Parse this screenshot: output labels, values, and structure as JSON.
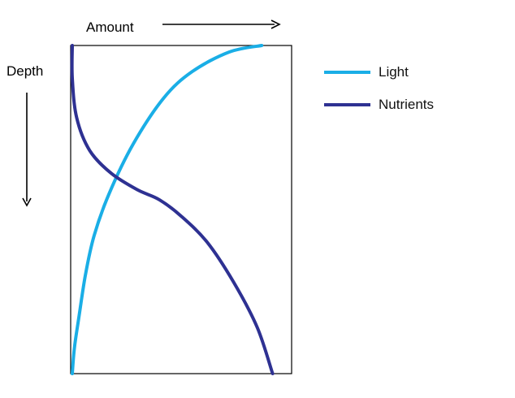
{
  "chart_data": {
    "type": "line",
    "xlabel": "Amount",
    "ylabel": "Depth",
    "x_scale": "relative amount (0 = none, 1 = maximum), increasing to the right",
    "y_scale": "relative depth (0 = surface, 1 = bottom), increasing downward",
    "xlim": [
      0,
      1
    ],
    "ylim": [
      0,
      1
    ],
    "grid": false,
    "legend_position": "right",
    "series": [
      {
        "name": "Light",
        "color": "#1aaee6",
        "points": [
          [
            0.87,
            0.0
          ],
          [
            0.72,
            0.02
          ],
          [
            0.55,
            0.08
          ],
          [
            0.42,
            0.16
          ],
          [
            0.28,
            0.3
          ],
          [
            0.17,
            0.45
          ],
          [
            0.1,
            0.58
          ],
          [
            0.06,
            0.7
          ],
          [
            0.03,
            0.83
          ],
          [
            0.01,
            0.92
          ],
          [
            0.0,
            1.0
          ]
        ]
      },
      {
        "name": "Nutrients",
        "color": "#2e3192",
        "points": [
          [
            0.0,
            0.0
          ],
          [
            0.0,
            0.1
          ],
          [
            0.02,
            0.22
          ],
          [
            0.08,
            0.32
          ],
          [
            0.18,
            0.39
          ],
          [
            0.3,
            0.44
          ],
          [
            0.4,
            0.47
          ],
          [
            0.5,
            0.52
          ],
          [
            0.62,
            0.6
          ],
          [
            0.74,
            0.72
          ],
          [
            0.85,
            0.86
          ],
          [
            0.92,
            1.0
          ]
        ]
      }
    ]
  }
}
